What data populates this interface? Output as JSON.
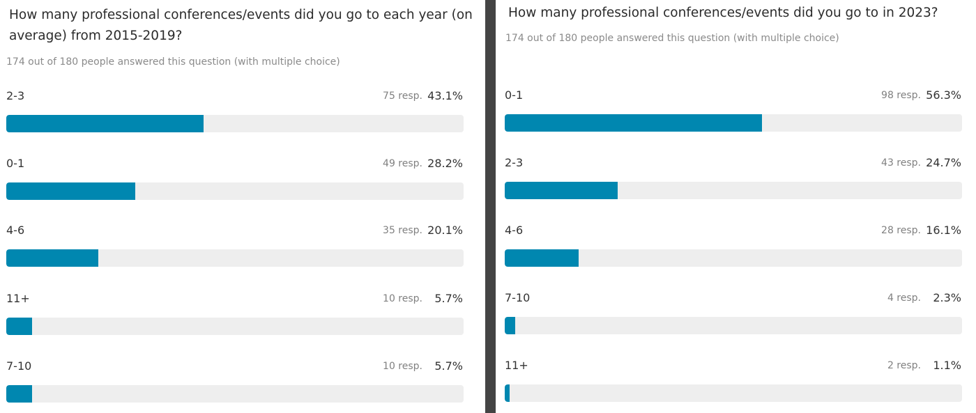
{
  "left": {
    "question": "How many professional conferences/events did you go to each year (on average) from 2015-2019?",
    "meta": "174 out of 180 people answered this question (with multiple choice)",
    "rows": [
      {
        "label": "2-3",
        "resp": "75 resp.",
        "pct": "43.1%",
        "value": 43.1
      },
      {
        "label": "0-1",
        "resp": "49 resp.",
        "pct": "28.2%",
        "value": 28.2
      },
      {
        "label": "4-6",
        "resp": "35 resp.",
        "pct": "20.1%",
        "value": 20.1
      },
      {
        "label": "11+",
        "resp": "10 resp.",
        "pct": "5.7%",
        "value": 5.7
      },
      {
        "label": "7-10",
        "resp": "10 resp.",
        "pct": "5.7%",
        "value": 5.7
      }
    ]
  },
  "right": {
    "question": "How many professional conferences/events did you go to in 2023?",
    "meta": "174 out of 180 people answered this question (with multiple choice)",
    "rows": [
      {
        "label": "0-1",
        "resp": "98 resp.",
        "pct": "56.3%",
        "value": 56.3
      },
      {
        "label": "2-3",
        "resp": "43 resp.",
        "pct": "24.7%",
        "value": 24.7
      },
      {
        "label": "4-6",
        "resp": "28 resp.",
        "pct": "16.1%",
        "value": 16.1
      },
      {
        "label": "7-10",
        "resp": "4 resp.",
        "pct": "2.3%",
        "value": 2.3
      },
      {
        "label": "11+",
        "resp": "2 resp.",
        "pct": "1.1%",
        "value": 1.1
      }
    ]
  },
  "colors": {
    "bar": "#0087b0",
    "track": "#eeeeee",
    "divider": "#444444"
  }
}
